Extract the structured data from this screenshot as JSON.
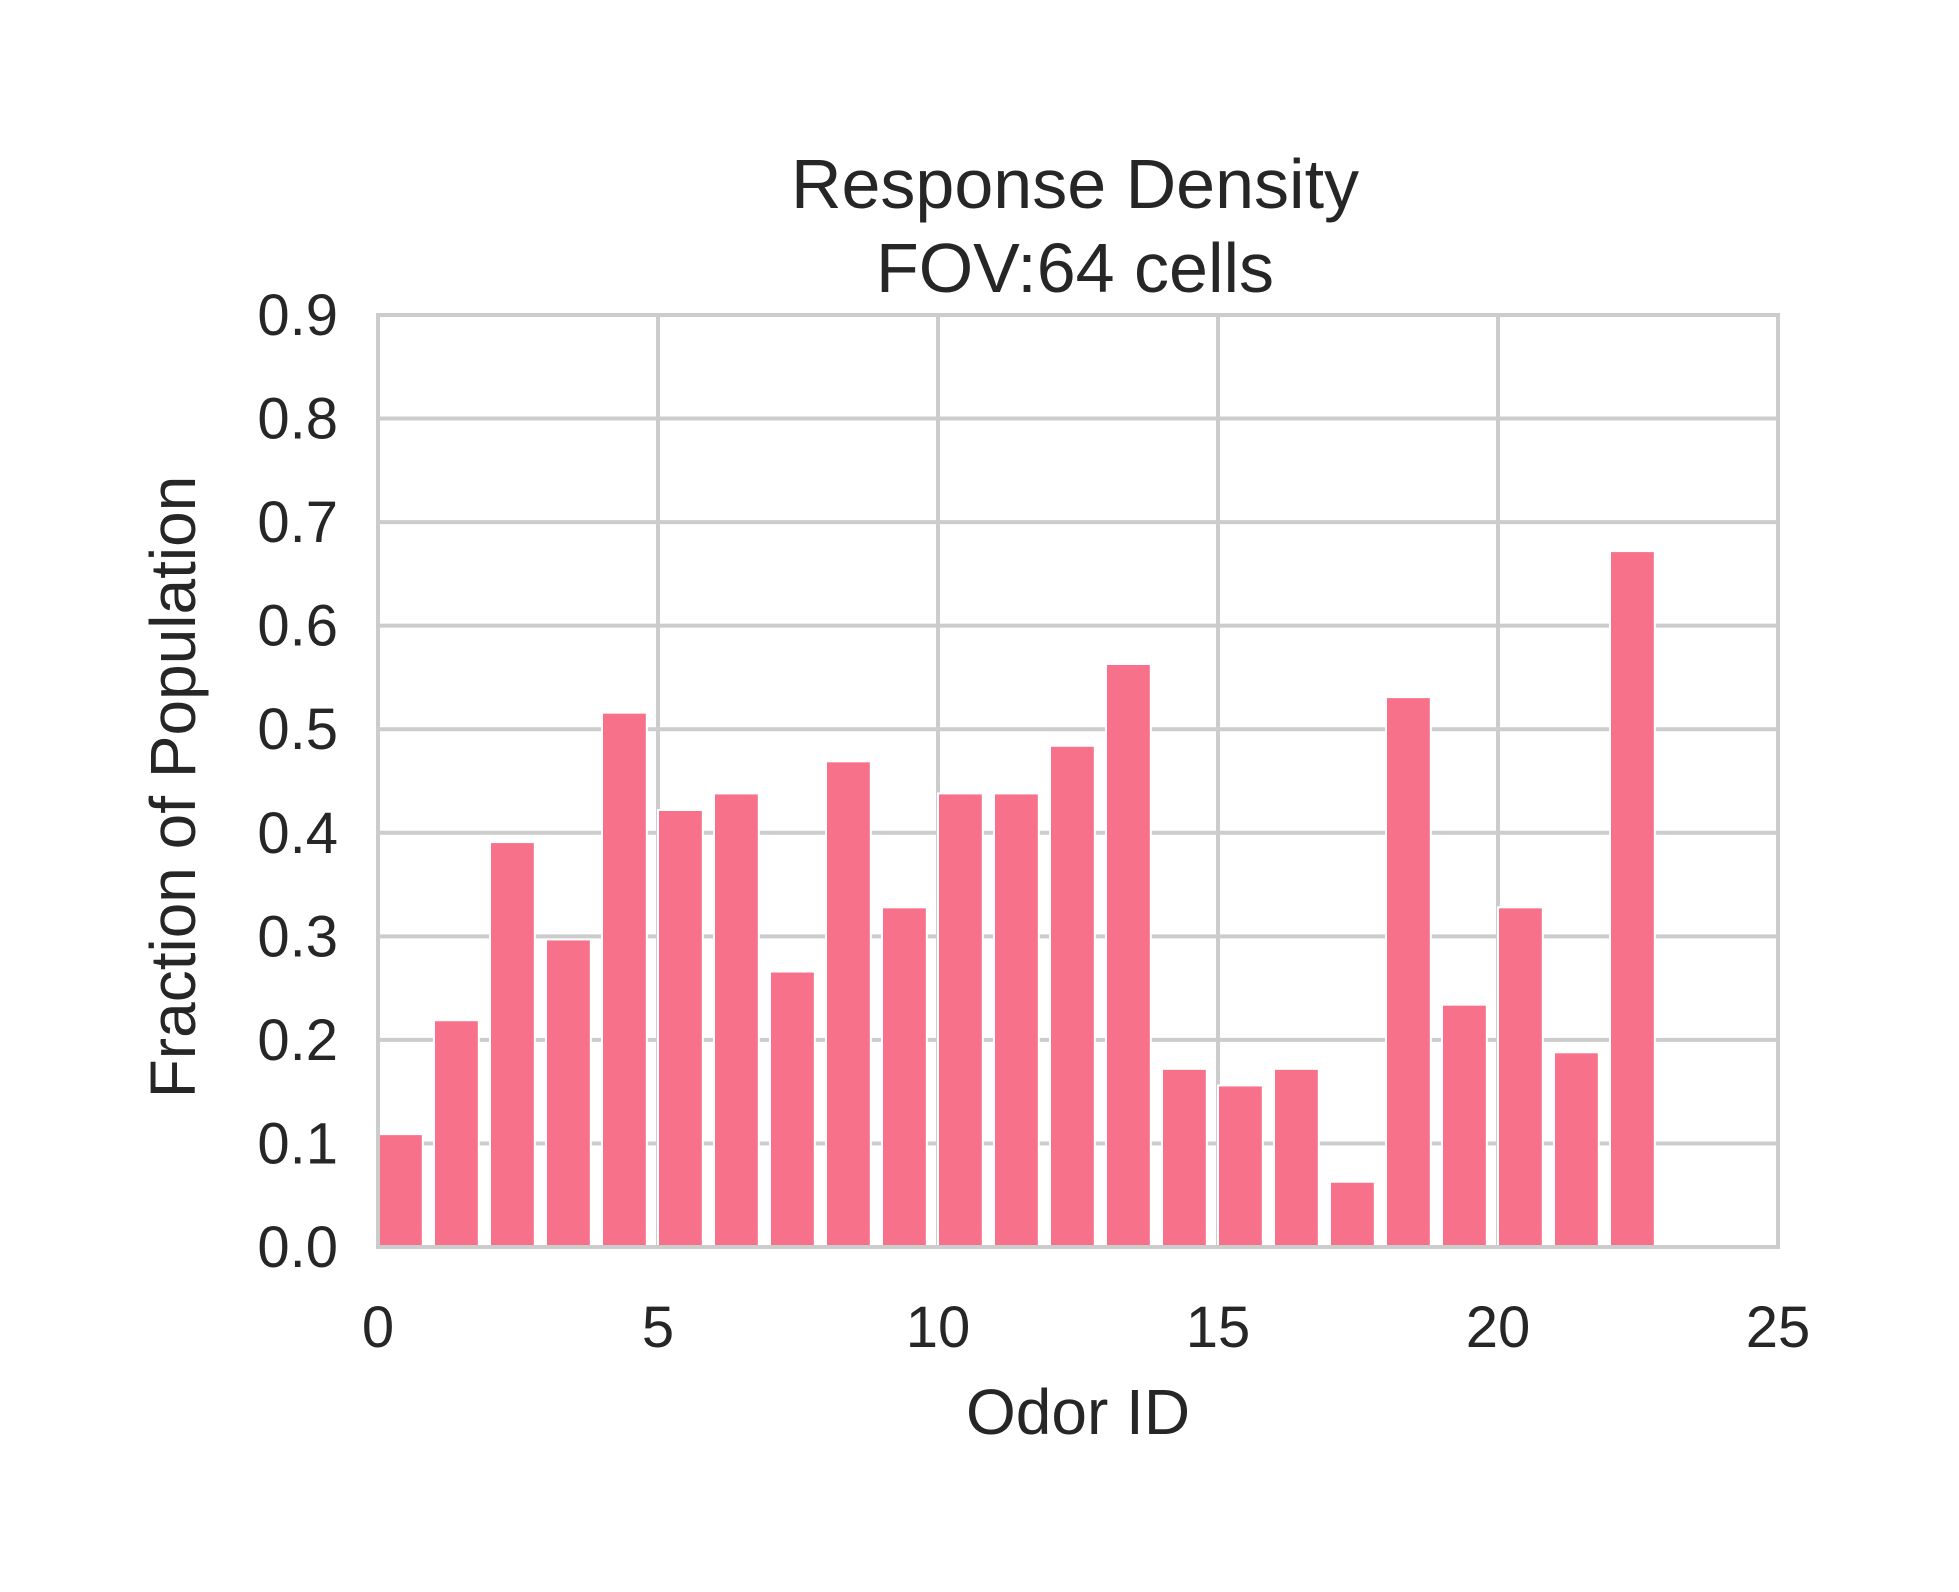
{
  "chart_data": {
    "type": "bar",
    "title": "Response Density",
    "subtitle": "FOV:64 cells",
    "xlabel": "Odor ID",
    "ylabel": "Fraction of Population",
    "xlim": [
      0,
      25
    ],
    "ylim": [
      0,
      0.9
    ],
    "xticks": [
      0,
      5,
      10,
      15,
      20,
      25
    ],
    "xtick_labels": [
      "0",
      "5",
      "10",
      "15",
      "20",
      "25"
    ],
    "yticks": [
      0,
      0.1,
      0.2,
      0.3,
      0.4,
      0.5,
      0.6,
      0.7,
      0.8,
      0.9
    ],
    "ytick_labels": [
      "0.0",
      "0.1",
      "0.2",
      "0.3",
      "0.4",
      "0.5",
      "0.6",
      "0.7",
      "0.8",
      "0.9"
    ],
    "grid": true,
    "bar_color": "#f7718a",
    "categories": [
      0,
      1,
      2,
      3,
      4,
      5,
      6,
      7,
      8,
      9,
      10,
      11,
      12,
      13,
      14,
      15,
      16,
      17,
      18,
      19,
      20,
      21,
      22
    ],
    "values": [
      0.109,
      0.219,
      0.391,
      0.297,
      0.516,
      0.422,
      0.438,
      0.266,
      0.469,
      0.328,
      0.438,
      0.438,
      0.484,
      0.563,
      0.172,
      0.156,
      0.172,
      0.063,
      0.531,
      0.234,
      0.328,
      0.188,
      0.672
    ]
  }
}
